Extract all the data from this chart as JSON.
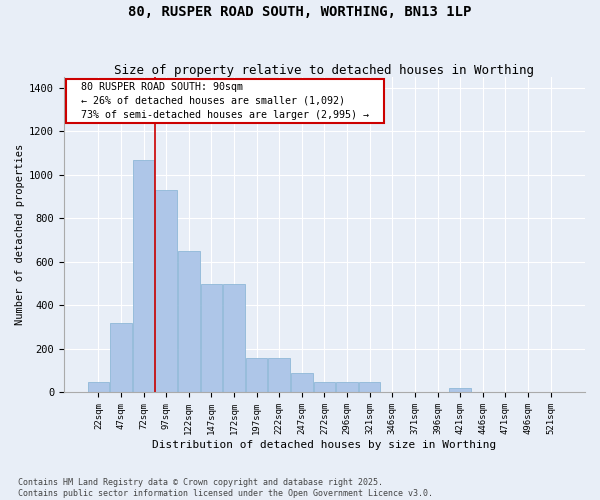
{
  "title": "80, RUSPER ROAD SOUTH, WORTHING, BN13 1LP",
  "subtitle": "Size of property relative to detached houses in Worthing",
  "xlabel": "Distribution of detached houses by size in Worthing",
  "ylabel": "Number of detached properties",
  "footnote": "Contains HM Land Registry data © Crown copyright and database right 2025.\nContains public sector information licensed under the Open Government Licence v3.0.",
  "categories": [
    "22sqm",
    "47sqm",
    "72sqm",
    "97sqm",
    "122sqm",
    "147sqm",
    "172sqm",
    "197sqm",
    "222sqm",
    "247sqm",
    "272sqm",
    "296sqm",
    "321sqm",
    "346sqm",
    "371sqm",
    "396sqm",
    "421sqm",
    "446sqm",
    "471sqm",
    "496sqm",
    "521sqm"
  ],
  "bar_values": [
    50,
    320,
    1070,
    930,
    650,
    500,
    500,
    160,
    160,
    90,
    50,
    50,
    50,
    0,
    0,
    0,
    20,
    0,
    0,
    0,
    0
  ],
  "bar_color": "#aec6e8",
  "bar_edge_color": "#8fb8d8",
  "bg_color": "#e8eef7",
  "grid_color": "#ffffff",
  "vline_x_index": 3,
  "vline_color": "#cc0000",
  "ylim": [
    0,
    1450
  ],
  "yticks": [
    0,
    200,
    400,
    600,
    800,
    1000,
    1200,
    1400
  ],
  "annotation_text": "  80 RUSPER ROAD SOUTH: 90sqm  \n  ← 26% of detached houses are smaller (1,092)  \n  73% of semi-detached houses are larger (2,995) →  ",
  "annotation_box_color": "#cc0000",
  "annotation_box_facecolor": "#ffffff",
  "title_fontsize": 10,
  "subtitle_fontsize": 9
}
